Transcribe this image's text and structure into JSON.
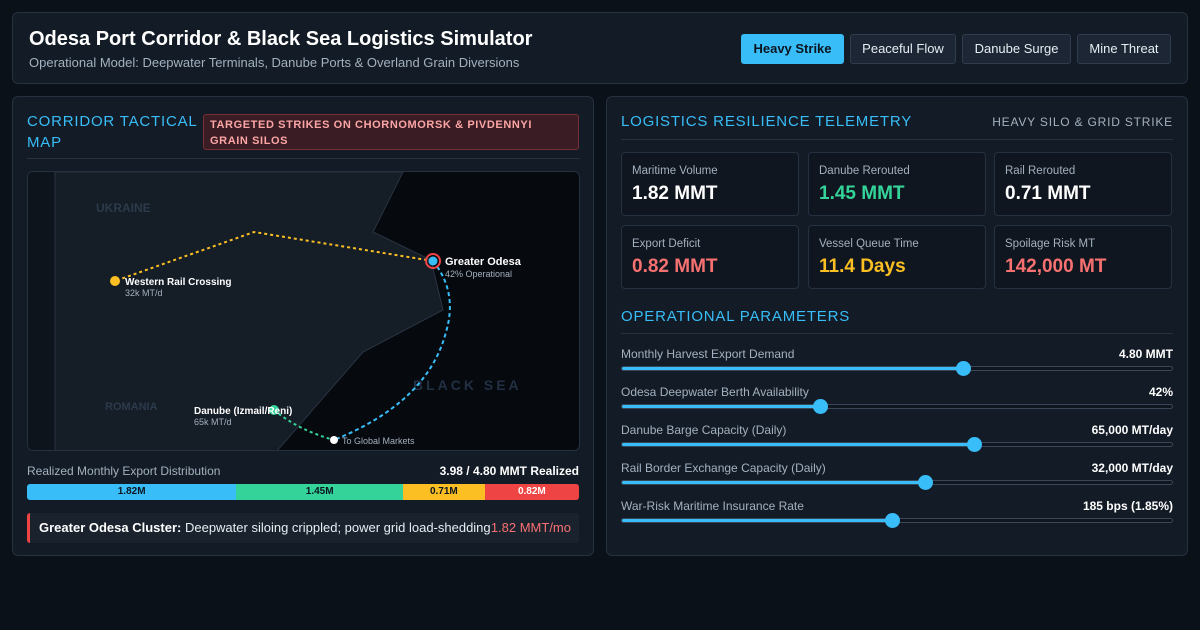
{
  "header": {
    "title": "Odesa Port Corridor & Black Sea Logistics Simulator",
    "subtitle": "Operational Model: Deepwater Terminals, Danube Ports & Overland Grain Diversions",
    "buttons": [
      {
        "label": "Heavy Strike",
        "active": true
      },
      {
        "label": "Peaceful Flow",
        "active": false
      },
      {
        "label": "Danube Surge",
        "active": false
      },
      {
        "label": "Mine Threat",
        "active": false
      }
    ]
  },
  "map_panel": {
    "title": "CORRIDOR TACTICAL MAP",
    "alert": "TARGETED STRIKES ON CHORNOMORSK & PIVDENNYI GRAIN SILOS",
    "regions": {
      "ukraine": "UKRAINE",
      "romania": "ROMANIA",
      "sea": "BLACK SEA"
    },
    "nodes": {
      "odesa": {
        "name": "Greater Odesa",
        "detail": "42% Operational"
      },
      "rail": {
        "name": "Western Rail Crossing",
        "detail": "32k MT/d"
      },
      "danube": {
        "name": "Danube (Izmail/Reni)",
        "detail": "65k MT/d"
      },
      "global": {
        "name": "To Global Markets"
      }
    },
    "colors": {
      "maritime": "#38bdf8",
      "danube": "#34d399",
      "rail": "#fbbf24",
      "deficit": "#ef4444"
    }
  },
  "distribution": {
    "label": "Realized Monthly Export Distribution",
    "total": "3.98 / 4.80 MMT Realized",
    "segments": [
      {
        "label": "1.82M",
        "value": 1.82,
        "color": "#38bdf8",
        "text_color": "#0b1520"
      },
      {
        "label": "1.45M",
        "value": 1.45,
        "color": "#34d399",
        "text_color": "#0b1520"
      },
      {
        "label": "0.71M",
        "value": 0.71,
        "color": "#fbbf24",
        "text_color": "#0b1520"
      },
      {
        "label": "0.82M",
        "value": 0.82,
        "color": "#ef4444",
        "text_color": "#ffffff"
      }
    ]
  },
  "cluster": {
    "name": "Greater Odesa Cluster:",
    "status": "Deepwater siloing crippled; power grid load-shedding",
    "value": "1.82 MMT/mo"
  },
  "telemetry": {
    "title": "LOGISTICS RESILIENCE TELEMETRY",
    "scenario": "HEAVY SILO & GRID STRIKE",
    "metrics": [
      {
        "label": "Maritime Volume",
        "value": "1.82 MMT",
        "color": "#ffffff"
      },
      {
        "label": "Danube Rerouted",
        "value": "1.45 MMT",
        "color": "#34d399"
      },
      {
        "label": "Rail Rerouted",
        "value": "0.71 MMT",
        "color": "#ffffff"
      },
      {
        "label": "Export Deficit",
        "value": "0.82 MMT",
        "color": "#f87171"
      },
      {
        "label": "Vessel Queue Time",
        "value": "11.4 Days",
        "color": "#fbbf24"
      },
      {
        "label": "Spoilage Risk MT",
        "value": "142,000 MT",
        "color": "#f87171"
      }
    ]
  },
  "parameters": {
    "title": "OPERATIONAL PARAMETERS",
    "items": [
      {
        "label": "Monthly Harvest Export Demand",
        "value": "4.80 MMT",
        "level": 0.62
      },
      {
        "label": "Odesa Deepwater Berth Availability",
        "value": "42%",
        "level": 0.36
      },
      {
        "label": "Danube Barge Capacity (Daily)",
        "value": "65,000 MT/day",
        "level": 0.64
      },
      {
        "label": "Rail Border Exchange Capacity (Daily)",
        "value": "32,000 MT/day",
        "level": 0.55
      },
      {
        "label": "War-Risk Maritime Insurance Rate",
        "value": "185 bps (1.85%)",
        "level": 0.49
      }
    ]
  }
}
